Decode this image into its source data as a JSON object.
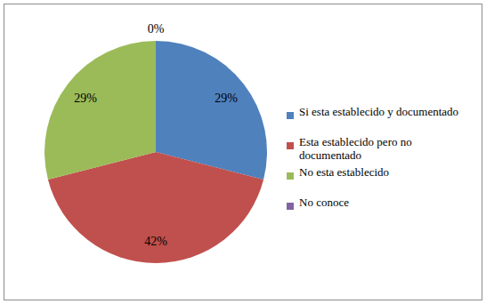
{
  "chart_data": {
    "type": "pie",
    "categories": [
      "Si esta establecido y documentado",
      "Esta establecido pero no documentado",
      "No esta establecido",
      "No conoce"
    ],
    "values": [
      29,
      42,
      29,
      0
    ],
    "value_labels": [
      "29%",
      "42%",
      "29%",
      "0%"
    ],
    "colors": [
      "#4f81bd",
      "#c0504d",
      "#9bbb59",
      "#8064a2"
    ],
    "data_labels": true,
    "legend": "right"
  }
}
